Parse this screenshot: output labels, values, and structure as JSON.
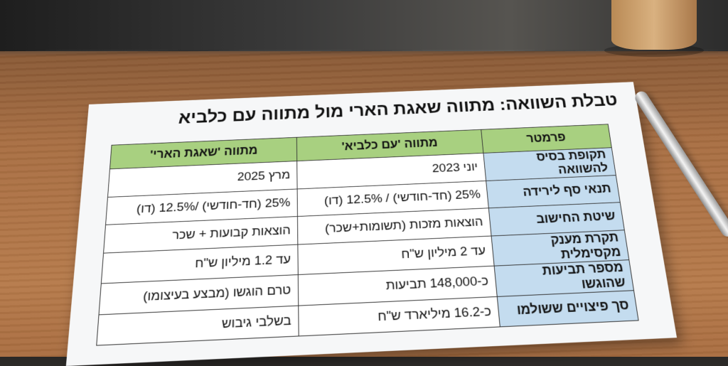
{
  "title": "טבלת השוואה: מתווה שאגת הארי מול מתווה עם כלביא",
  "table": {
    "headers": [
      "פרמטר",
      "מתווה 'עם כלביא'",
      "מתווה 'שאגת הארי'"
    ],
    "rows": [
      [
        "תקופת בסיס להשוואה",
        "יוני 2023",
        "מרץ 2025"
      ],
      [
        "תנאי סף לירידה",
        "25% (חד-חודשי) / 12.5% (דו)",
        "25% (חד-חודשי) /12.5% (דו)"
      ],
      [
        "שיטת החישוב",
        "הוצאות מזכות (תשומות+שכר)",
        "הוצאות קבועות + שכר"
      ],
      [
        "תקרת מענק מקסימלית",
        "עד 2 מיליון ש\"ח",
        "עד 1.2 מיליון ש\"ח"
      ],
      [
        "מספר תביעות שהוגשו",
        "כ-148,000 תביעות",
        "טרם הוגשו (מבצע בעיצומו)"
      ],
      [
        "סך פיצויים ששולמו",
        "כ-16.2 מיליארד ש\"ח",
        "בשלבי גיבוש"
      ]
    ]
  },
  "colors": {
    "header": "#a8d080",
    "param": "#c4dcef"
  }
}
